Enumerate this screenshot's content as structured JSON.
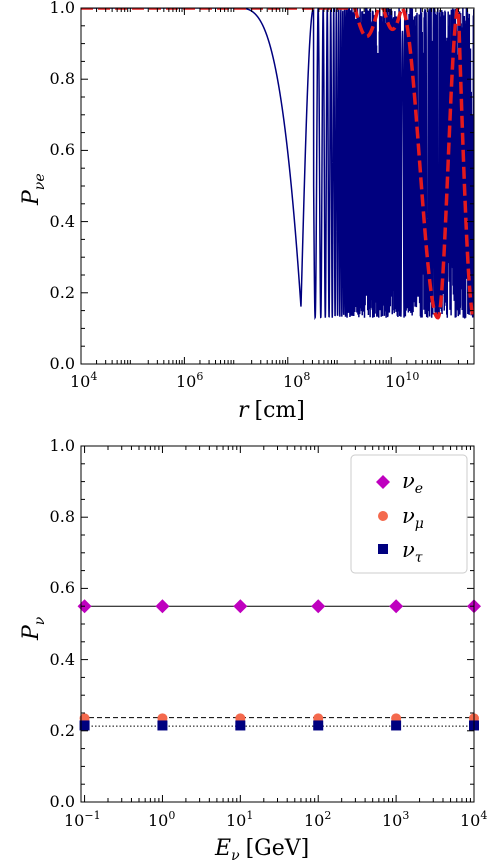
{
  "chart_data": [
    {
      "type": "line",
      "xscale": "log",
      "xlim": [
        10000,
        400000000000
      ],
      "ylim": [
        0,
        1
      ],
      "xticks": [
        {
          "value": 10000,
          "base": "10",
          "exp": "4"
        },
        {
          "value": 1000000,
          "base": "10",
          "exp": "6"
        },
        {
          "value": 100000000,
          "base": "10",
          "exp": "8"
        },
        {
          "value": 10000000000,
          "base": "10",
          "exp": "10"
        }
      ],
      "yticks": [
        "0.0",
        "0.2",
        "0.4",
        "0.6",
        "0.8",
        "1.0"
      ],
      "xlabel": {
        "var": "r",
        "unit": "[cm]"
      },
      "ylabel": {
        "var": "P",
        "sub": "νe"
      },
      "grid": false,
      "series": [
        {
          "style": "solid",
          "color": "#00007f",
          "shape": "oscillating probability dipping to ~0.16 near r≈1.8e8 cm, then rapid oscillation between ~0.13 and 1.0 for r > 3e8 cm",
          "min_value": 0.16,
          "min_at": 180000000
        },
        {
          "style": "dashed",
          "color": "#e41a1c",
          "shape": "stays near 1.0, small dips near 4e9 and 1e10 cm, deep dip to ~0.13 near 8e10 cm, returns to 1.0 near 2e11 cm",
          "min_value": 0.13,
          "min_at": 80000000000
        }
      ]
    },
    {
      "type": "scatter",
      "xscale": "log",
      "xlim": [
        0.09,
        10000
      ],
      "ylim": [
        0,
        1
      ],
      "xticks": [
        {
          "value": 0.1,
          "base": "10",
          "exp": "−1"
        },
        {
          "value": 1,
          "base": "10",
          "exp": "0"
        },
        {
          "value": 10,
          "base": "10",
          "exp": "1"
        },
        {
          "value": 100,
          "base": "10",
          "exp": "2"
        },
        {
          "value": 1000,
          "base": "10",
          "exp": "3"
        },
        {
          "value": 10000,
          "base": "10",
          "exp": "4"
        }
      ],
      "yticks": [
        "0.0",
        "0.2",
        "0.4",
        "0.6",
        "0.8",
        "1.0"
      ],
      "xlabel": {
        "var": "E",
        "sub": "ν",
        "unit": "[GeV]"
      },
      "ylabel": {
        "var": "P",
        "sub": "ν"
      },
      "grid": false,
      "legend": {
        "location": "top-right"
      },
      "x": [
        0.1,
        1,
        10,
        100,
        1000,
        10000
      ],
      "series": [
        {
          "name": "νe",
          "var": "ν",
          "sub": "e",
          "marker": "diamond",
          "color": "#bf00bf",
          "values": [
            0.55,
            0.55,
            0.55,
            0.55,
            0.55,
            0.55
          ]
        },
        {
          "name": "νμ",
          "var": "ν",
          "sub": "μ",
          "marker": "circle",
          "color": "#f4694d",
          "values": [
            0.235,
            0.235,
            0.235,
            0.235,
            0.235,
            0.235
          ]
        },
        {
          "name": "ντ",
          "var": "ν",
          "sub": "τ",
          "marker": "square",
          "color": "#00007f",
          "values": [
            0.215,
            0.215,
            0.215,
            0.215,
            0.215,
            0.215
          ]
        }
      ],
      "reference_lines": [
        {
          "y": 0.55,
          "style": "solid"
        },
        {
          "y": 0.237,
          "style": "dashed"
        },
        {
          "y": 0.213,
          "style": "dotted"
        }
      ]
    }
  ]
}
